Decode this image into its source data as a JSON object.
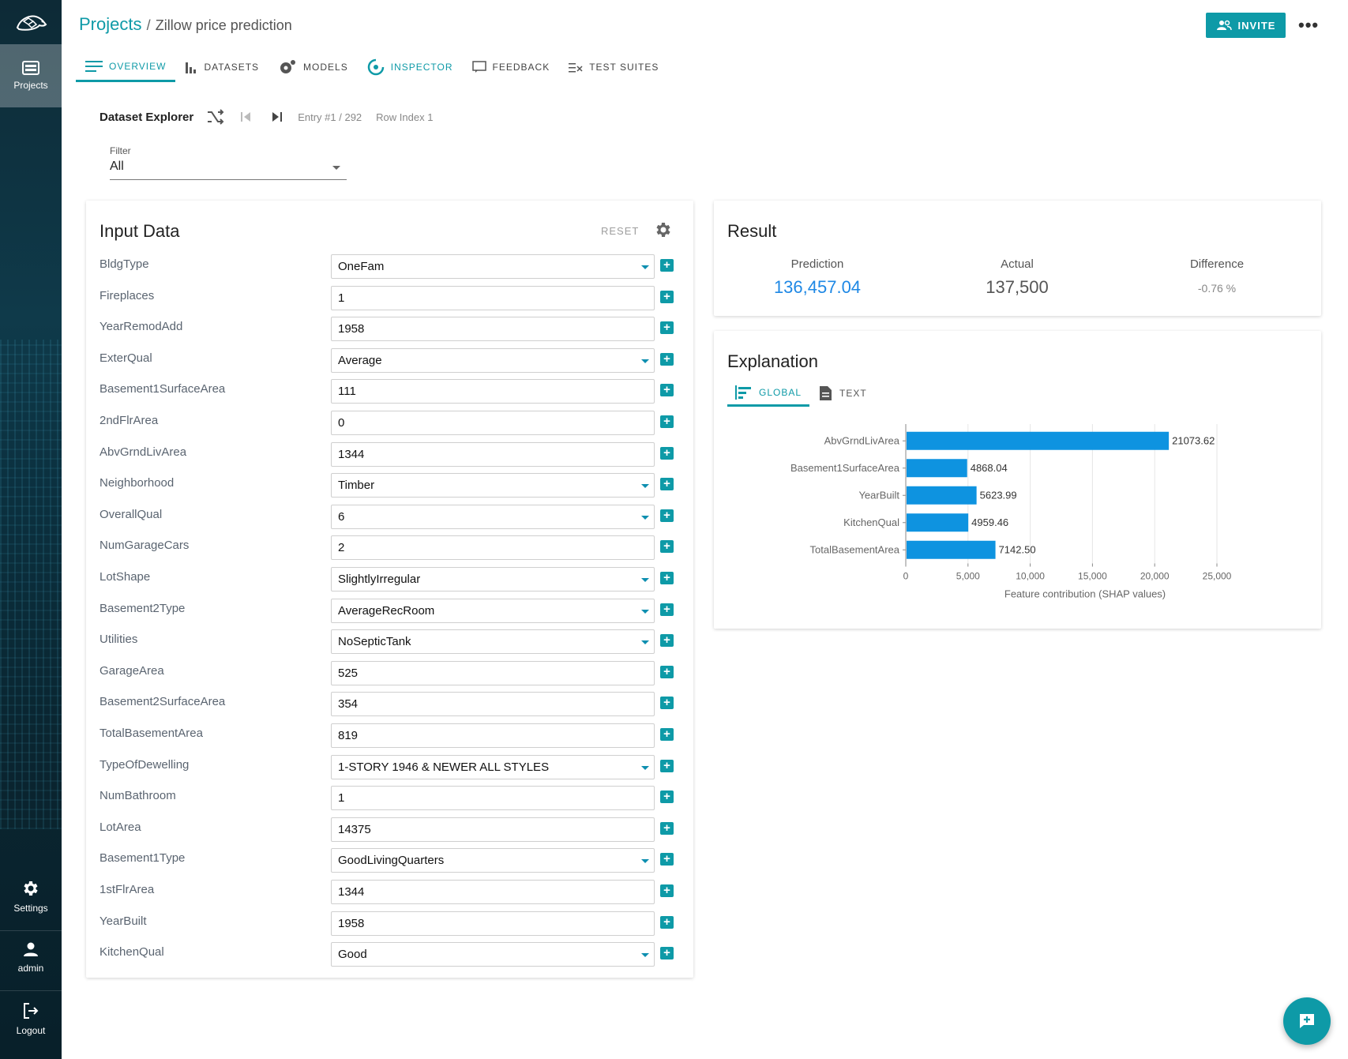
{
  "sidebar": {
    "projects_label": "Projects",
    "settings_label": "Settings",
    "user_label": "admin",
    "logout_label": "Logout"
  },
  "header": {
    "breadcrumb_root": "Projects",
    "breadcrumb_sep": "/",
    "project_name": "Zillow price prediction",
    "invite_label": "INVITE"
  },
  "tabs": [
    {
      "label": "OVERVIEW",
      "icon": "overview-icon"
    },
    {
      "label": "DATASETS",
      "icon": "datasets-icon"
    },
    {
      "label": "MODELS",
      "icon": "models-icon"
    },
    {
      "label": "INSPECTOR",
      "icon": "inspector-icon"
    },
    {
      "label": "FEEDBACK",
      "icon": "feedback-icon"
    },
    {
      "label": "TEST SUITES",
      "icon": "test-suites-icon"
    }
  ],
  "explorer": {
    "title": "Dataset Explorer",
    "entry": "Entry #1 / 292",
    "row_index": "Row Index 1",
    "filter_label": "Filter",
    "filter_value": "All"
  },
  "input_data": {
    "title": "Input Data",
    "reset_label": "RESET",
    "rows": [
      {
        "name": "BldgType",
        "value": "OneFam",
        "select": true
      },
      {
        "name": "Fireplaces",
        "value": "1",
        "select": false
      },
      {
        "name": "YearRemodAdd",
        "value": "1958",
        "select": false
      },
      {
        "name": "ExterQual",
        "value": "Average",
        "select": true
      },
      {
        "name": "Basement1SurfaceArea",
        "value": "111",
        "select": false
      },
      {
        "name": "2ndFlrArea",
        "value": "0",
        "select": false
      },
      {
        "name": "AbvGrndLivArea",
        "value": "1344",
        "select": false
      },
      {
        "name": "Neighborhood",
        "value": "Timber",
        "select": true
      },
      {
        "name": "OverallQual",
        "value": "6",
        "select": true
      },
      {
        "name": "NumGarageCars",
        "value": "2",
        "select": false
      },
      {
        "name": "LotShape",
        "value": "SlightlyIrregular",
        "select": true
      },
      {
        "name": "Basement2Type",
        "value": "AverageRecRoom",
        "select": true
      },
      {
        "name": "Utilities",
        "value": "NoSepticTank",
        "select": true
      },
      {
        "name": "GarageArea",
        "value": "525",
        "select": false
      },
      {
        "name": "Basement2SurfaceArea",
        "value": "354",
        "select": false
      },
      {
        "name": "TotalBasementArea",
        "value": "819",
        "select": false
      },
      {
        "name": "TypeOfDewelling",
        "value": "1-STORY 1946 & NEWER ALL STYLES",
        "select": true
      },
      {
        "name": "NumBathroom",
        "value": "1",
        "select": false
      },
      {
        "name": "LotArea",
        "value": "14375",
        "select": false
      },
      {
        "name": "Basement1Type",
        "value": "GoodLivingQuarters",
        "select": true
      },
      {
        "name": "1stFlrArea",
        "value": "1344",
        "select": false
      },
      {
        "name": "YearBuilt",
        "value": "1958",
        "select": false
      },
      {
        "name": "KitchenQual",
        "value": "Good",
        "select": true
      }
    ]
  },
  "result": {
    "title": "Result",
    "prediction_label": "Prediction",
    "prediction_value": "136,457.04",
    "actual_label": "Actual",
    "actual_value": "137,500",
    "difference_label": "Difference",
    "difference_value": "-0.76 %"
  },
  "explanation": {
    "title": "Explanation",
    "tab_global": "GLOBAL",
    "tab_text": "TEXT"
  },
  "colors": {
    "accent": "#0e9aa7",
    "bar": "#0e93e0",
    "prediction": "#1e88e5"
  },
  "chart_data": {
    "type": "bar",
    "orientation": "horizontal",
    "categories": [
      "AbvGrndLivArea",
      "Basement1SurfaceArea",
      "YearBuilt",
      "KitchenQual",
      "TotalBasementArea"
    ],
    "values": [
      21073.62,
      4868.04,
      5623.99,
      4959.46,
      7142.5
    ],
    "value_labels": [
      "21073.62",
      "4868.04",
      "5623.99",
      "4959.46",
      "7142.50"
    ],
    "xlabel": "Feature contribution (SHAP values)",
    "xlim": [
      0,
      25000
    ],
    "xticks": [
      0,
      5000,
      10000,
      15000,
      20000,
      25000
    ],
    "xtick_labels": [
      "0",
      "5,000",
      "10,000",
      "15,000",
      "20,000",
      "25,000"
    ],
    "grid": true
  }
}
